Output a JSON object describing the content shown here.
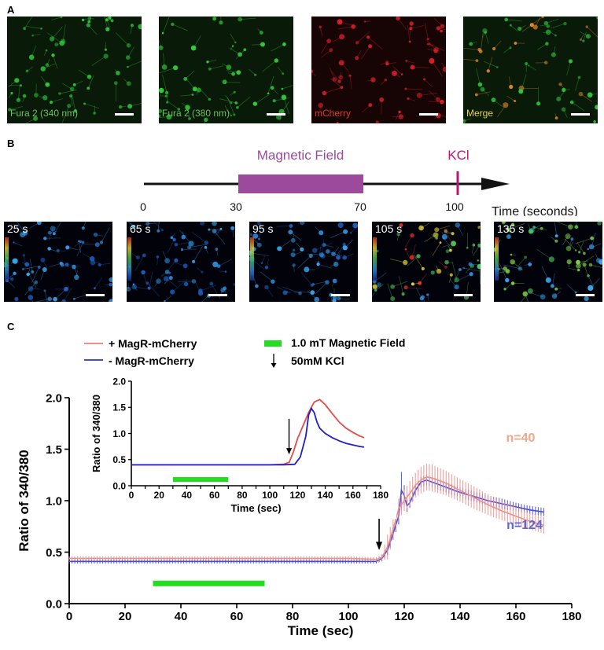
{
  "panel_a": {
    "label": "A",
    "images": [
      {
        "label": "Fura 2 (340 nm)",
        "label_color": "#6fbf5a",
        "base": "#0a1a08",
        "cells": "#2fc83a"
      },
      {
        "label": "Fura 2 (380 nm)",
        "label_color": "#6fbf5a",
        "base": "#0a1a08",
        "cells": "#33d03c"
      },
      {
        "label": "mCherry",
        "label_color": "#e03a2a",
        "base": "#170505",
        "cells": "#e0202a"
      },
      {
        "label": "Merge",
        "label_color": "#e8d44a",
        "base": "#0a1a08",
        "cells": "#2fc83a"
      }
    ]
  },
  "panel_b": {
    "label": "B",
    "field_label": "Magnetic Field",
    "kcl_label": "KCl",
    "ticks": [
      "0",
      "30",
      "70",
      "100"
    ],
    "axis_label": "Time (seconds)",
    "field_color": "#9b4a9c",
    "kcl_color": "#b5177a",
    "frames": [
      {
        "time": "25 s",
        "tone": "blue"
      },
      {
        "time": "65 s",
        "tone": "blue"
      },
      {
        "time": "95 s",
        "tone": "blue"
      },
      {
        "time": "105 s",
        "tone": "mixed"
      },
      {
        "time": "135 s",
        "tone": "green"
      }
    ]
  },
  "panel_c": {
    "label": "C",
    "legend": {
      "plus": "+ MagR-mCherry",
      "minus": "- MagR-mCherry",
      "field": "1.0 mT Magnetic Field",
      "kcl": "50mM KCl"
    },
    "n_plus": "n=40",
    "n_minus": "n=124",
    "colors": {
      "plus": "#ee8f8a",
      "minus": "#4a4ad8",
      "field": "#22dd22",
      "n_plus": "#f2a58a",
      "n_minus": "#5a6ad4"
    }
  },
  "chart_data": [
    {
      "type": "line",
      "xlabel": "Time (sec)",
      "ylabel": "Ratio of 340/380",
      "xlim": [
        0,
        180
      ],
      "ylim": [
        0,
        2.0
      ],
      "x_ticks": [
        0,
        20,
        40,
        60,
        80,
        100,
        120,
        140,
        160,
        180
      ],
      "y_ticks": [
        0.0,
        0.5,
        1.0,
        1.5,
        2.0
      ],
      "y_tick_labels": [
        "0.0",
        "0.5",
        "1.0",
        "1.5",
        "2.0"
      ],
      "field_bar": [
        30,
        70
      ],
      "kcl_arrow": 111,
      "series": [
        {
          "name": "+ MagR-mCherry",
          "x": [
            0,
            20,
            40,
            60,
            80,
            100,
            110,
            112,
            114,
            116,
            118,
            120,
            122,
            124,
            126,
            128,
            130,
            135,
            140,
            145,
            150,
            155,
            160,
            165,
            170
          ],
          "y": [
            0.44,
            0.44,
            0.44,
            0.44,
            0.44,
            0.44,
            0.43,
            0.45,
            0.55,
            0.72,
            0.92,
            1.0,
            1.07,
            1.15,
            1.2,
            1.23,
            1.22,
            1.17,
            1.1,
            1.03,
            0.96,
            0.9,
            0.85,
            0.8,
            0.76
          ],
          "err": [
            0.02,
            0.02,
            0.02,
            0.02,
            0.02,
            0.02,
            0.02,
            0.03,
            0.12,
            0.1,
            0.1,
            0.1,
            0.12,
            0.12,
            0.13,
            0.13,
            0.13,
            0.12,
            0.11,
            0.11,
            0.1,
            0.09,
            0.09,
            0.08,
            0.08
          ]
        },
        {
          "name": "- MagR-mCherry",
          "x": [
            0,
            20,
            40,
            60,
            80,
            100,
            110,
            112,
            114,
            116,
            118,
            119,
            120,
            121,
            122,
            124,
            126,
            128,
            130,
            135,
            140,
            145,
            150,
            155,
            160,
            165,
            170
          ],
          "y": [
            0.41,
            0.41,
            0.41,
            0.41,
            0.41,
            0.41,
            0.41,
            0.44,
            0.52,
            0.68,
            0.85,
            1.1,
            1.05,
            0.95,
            0.98,
            1.1,
            1.18,
            1.2,
            1.18,
            1.13,
            1.08,
            1.04,
            1.0,
            0.97,
            0.94,
            0.91,
            0.89
          ],
          "err": [
            0.02,
            0.02,
            0.02,
            0.02,
            0.02,
            0.02,
            0.02,
            0.03,
            0.05,
            0.06,
            0.08,
            0.18,
            0.1,
            0.06,
            0.05,
            0.05,
            0.05,
            0.05,
            0.05,
            0.05,
            0.05,
            0.05,
            0.05,
            0.05,
            0.04,
            0.04,
            0.04
          ]
        }
      ]
    },
    {
      "type": "line",
      "xlabel": "Time (sec)",
      "ylabel": "Ratio of 340/380",
      "xlim": [
        0,
        180
      ],
      "ylim": [
        0,
        2.0
      ],
      "x_ticks": [
        0,
        10,
        20,
        30,
        40,
        50,
        60,
        70,
        80,
        90,
        100,
        110,
        120,
        130,
        140,
        150,
        160,
        170,
        180
      ],
      "x_tick_labels": [
        "0",
        "",
        "20",
        "",
        "40",
        "",
        "60",
        "",
        "80",
        "",
        "100",
        "",
        "120",
        "",
        "140",
        "",
        "160",
        "",
        "180"
      ],
      "y_ticks": [
        0.0,
        0.5,
        1.0,
        1.5,
        2.0
      ],
      "y_tick_labels": [
        "0.0",
        "0.5",
        "1.0",
        "1.5",
        "2.0"
      ],
      "field_bar": [
        30,
        70
      ],
      "kcl_arrow": 115,
      "series": [
        {
          "name": "+ MagR-mCherry",
          "x": [
            0,
            20,
            40,
            60,
            80,
            100,
            110,
            114,
            117,
            120,
            124,
            128,
            132,
            136,
            140,
            145,
            150,
            155,
            160,
            165,
            168
          ],
          "y": [
            0.4,
            0.4,
            0.4,
            0.4,
            0.4,
            0.4,
            0.41,
            0.45,
            0.65,
            0.9,
            1.15,
            1.4,
            1.6,
            1.65,
            1.55,
            1.38,
            1.22,
            1.1,
            1.02,
            0.95,
            0.92
          ]
        },
        {
          "name": "- MagR-mCherry",
          "x": [
            0,
            20,
            40,
            60,
            80,
            100,
            110,
            118,
            122,
            126,
            128,
            130,
            132,
            134,
            136,
            140,
            145,
            150,
            155,
            160,
            165,
            168
          ],
          "y": [
            0.4,
            0.4,
            0.4,
            0.4,
            0.4,
            0.4,
            0.4,
            0.41,
            0.55,
            0.95,
            1.35,
            1.48,
            1.4,
            1.22,
            1.1,
            1.0,
            0.92,
            0.86,
            0.81,
            0.78,
            0.75,
            0.74
          ]
        }
      ]
    }
  ]
}
